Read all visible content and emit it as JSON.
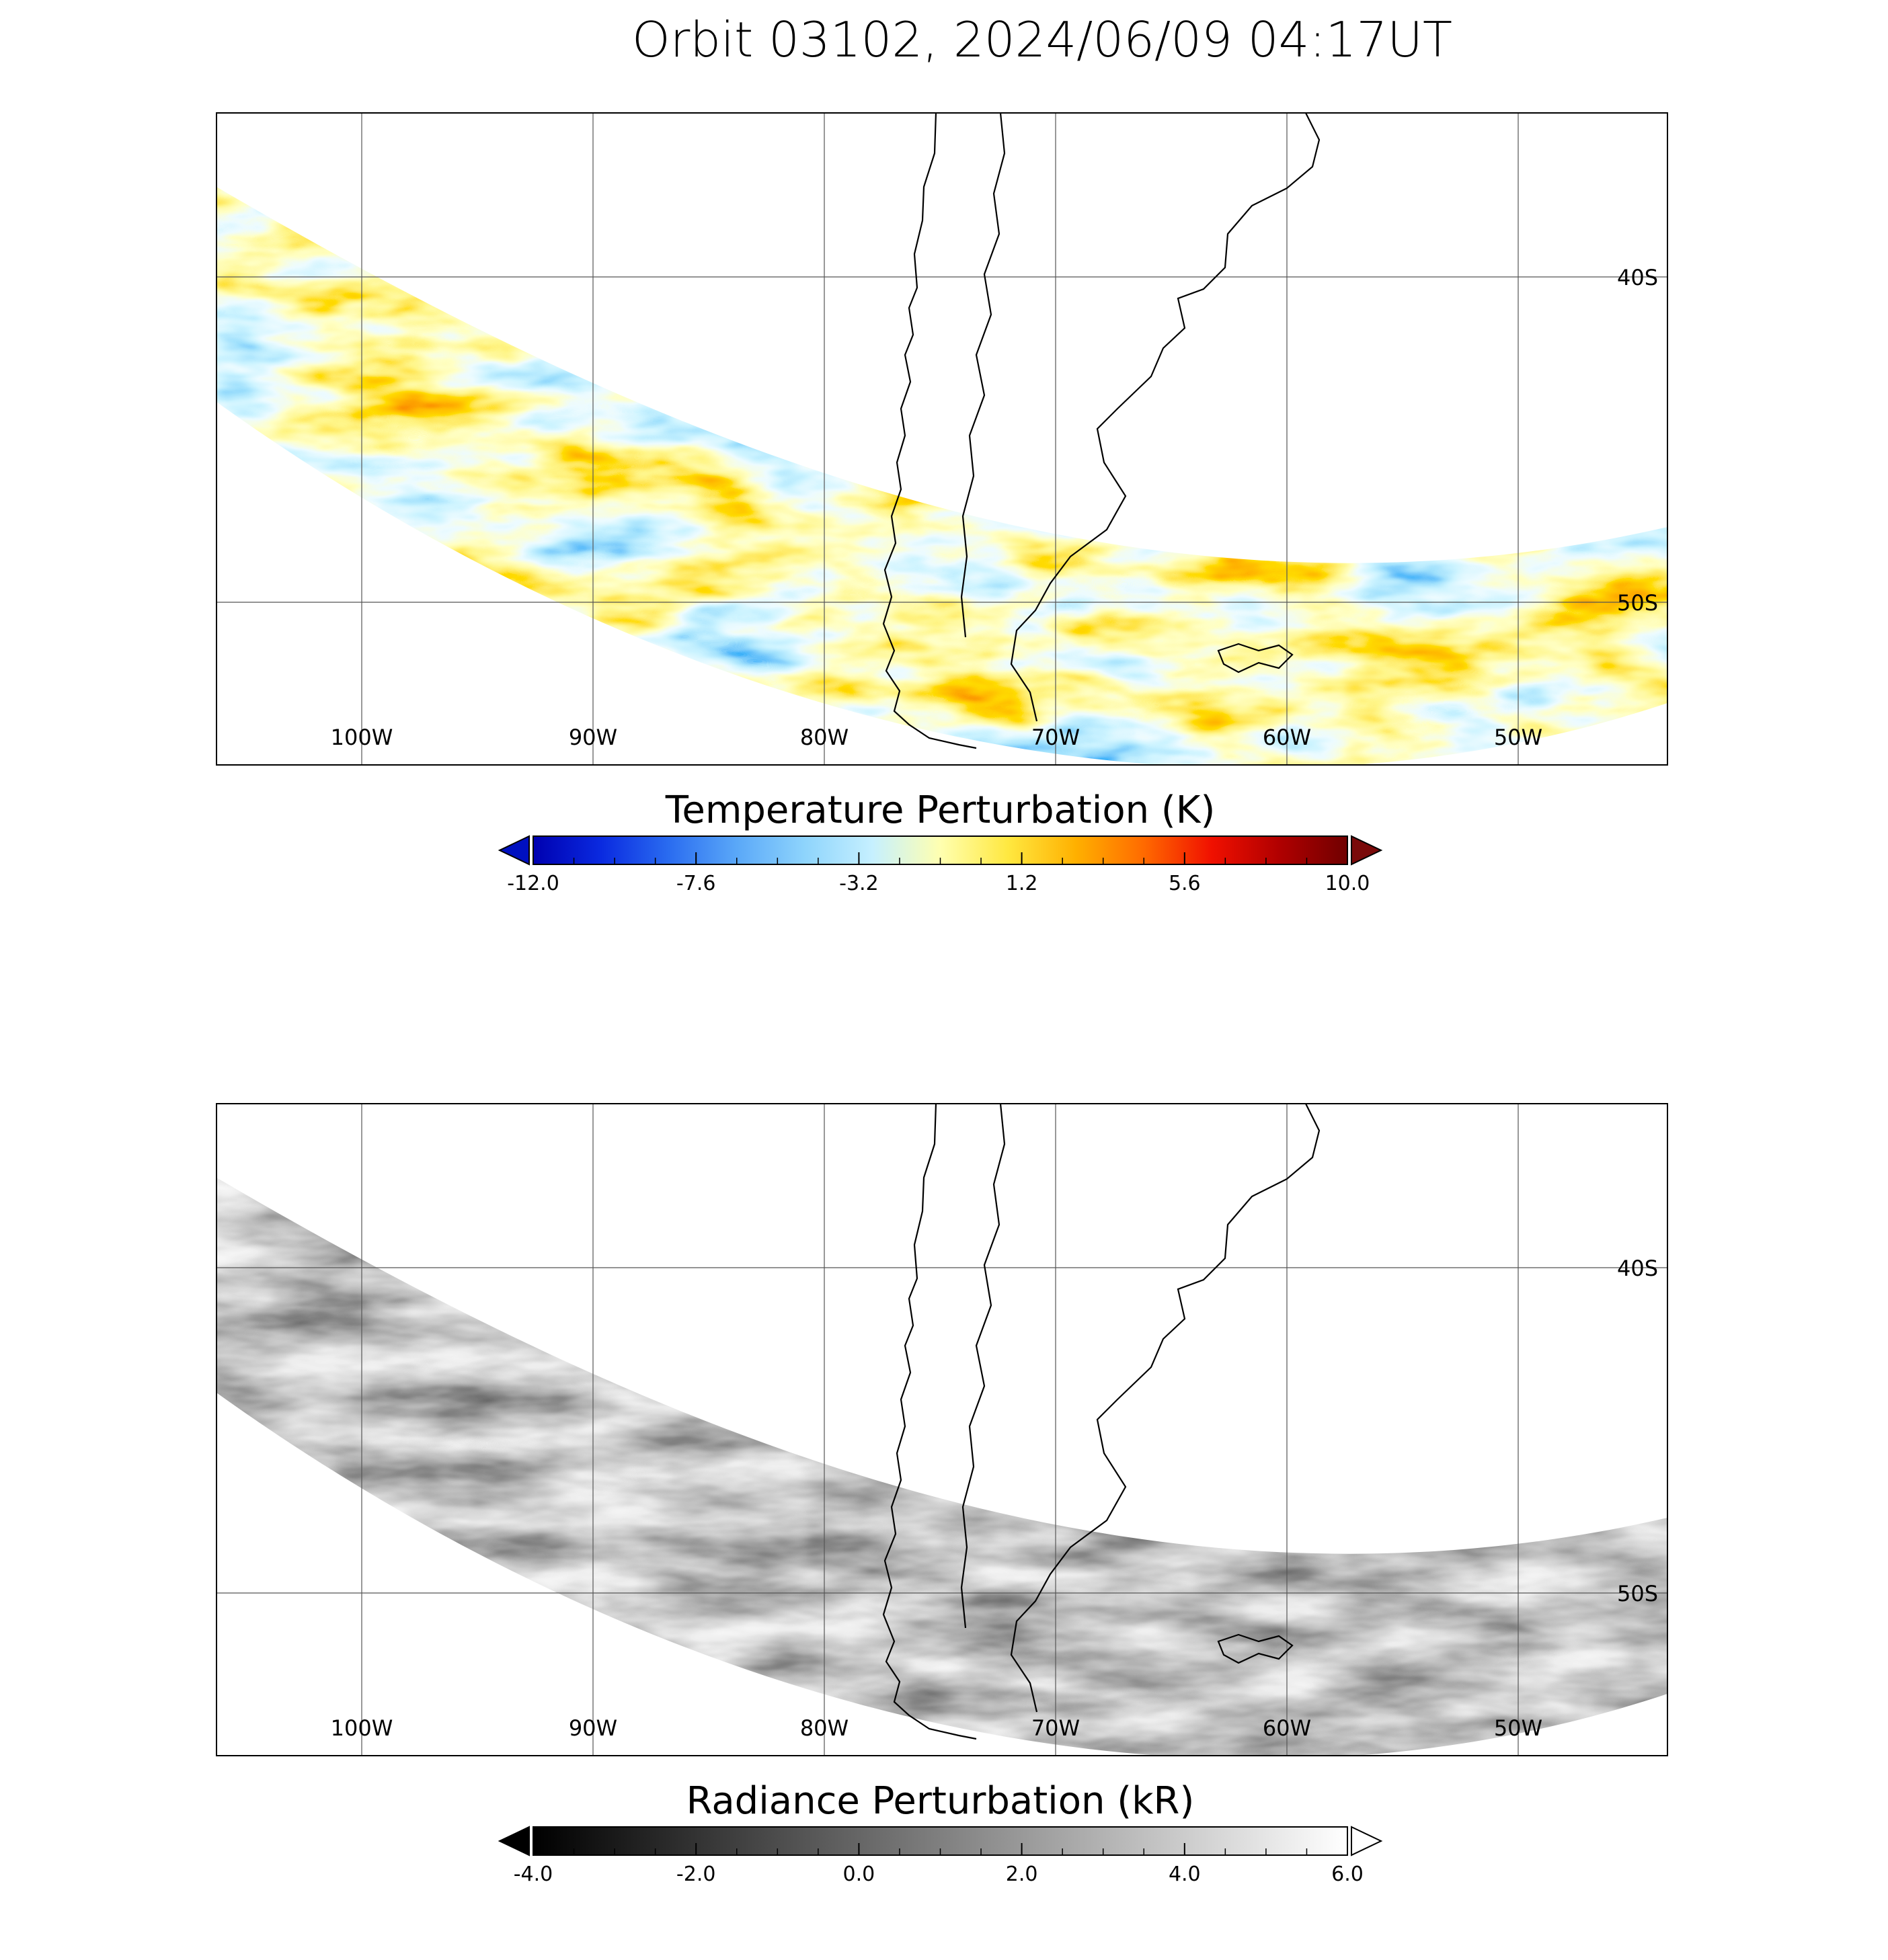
{
  "title": "Orbit 03102, 2024/06/09 04:17UT",
  "map": {
    "lon_labels": [
      "100W",
      "90W",
      "80W",
      "70W",
      "60W",
      "50W"
    ],
    "lat_labels": [
      "40S",
      "50S"
    ],
    "lon_values": [
      -100,
      -90,
      -80,
      -70,
      -60,
      -50
    ],
    "lat_values": [
      -40,
      -50
    ]
  },
  "panels": [
    {
      "id": "temperature",
      "colorbar": {
        "title": "Temperature Perturbation (K)",
        "ticks": [
          "-12.0",
          "-7.6",
          "-3.2",
          "1.2",
          "5.6",
          "10.0"
        ],
        "range": [
          -12.0,
          10.0
        ],
        "under_color": "#0010c0",
        "over_color": "#7a0a0a",
        "colors": [
          "#0000b0",
          "#0a2ae0",
          "#2a6cf0",
          "#5aa8f8",
          "#8ed4fc",
          "#c6f0ff",
          "#ffffb0",
          "#ffe840",
          "#ffb000",
          "#ff6a00",
          "#f01000",
          "#b00000",
          "#700000"
        ]
      }
    },
    {
      "id": "radiance",
      "colorbar": {
        "title": "Radiance Perturbation (kR)",
        "ticks": [
          "-4.0",
          "-2.0",
          "0.0",
          "2.0",
          "4.0",
          "6.0"
        ],
        "range": [
          -4.0,
          6.0
        ],
        "under_color": "#000000",
        "over_color": "#ffffff",
        "colors": [
          "#000000",
          "#ffffff"
        ]
      }
    }
  ]
}
